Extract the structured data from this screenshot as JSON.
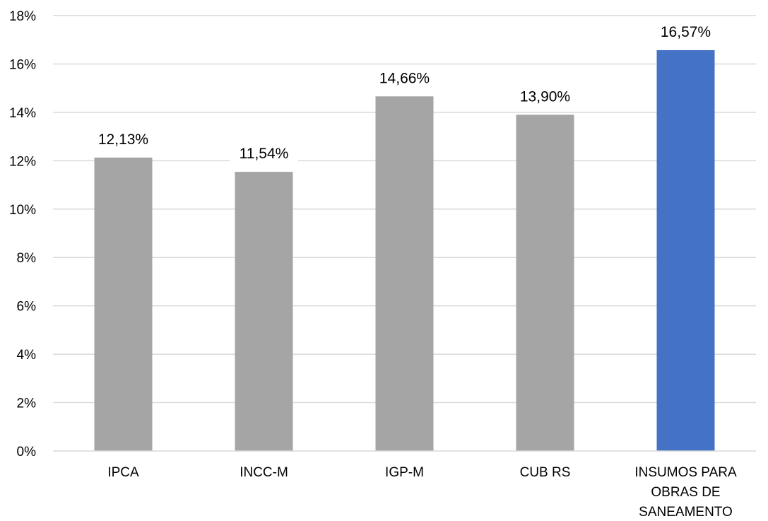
{
  "chart_data": {
    "type": "bar",
    "categories": [
      [
        "IPCA"
      ],
      [
        "INCC-M"
      ],
      [
        "IGP-M"
      ],
      [
        "CUB RS"
      ],
      [
        "INSUMOS PARA",
        "OBRAS DE",
        "SANEAMENTO"
      ]
    ],
    "values": [
      12.13,
      11.54,
      14.66,
      13.9,
      16.57
    ],
    "data_labels": [
      "12,13%",
      "11,54%",
      "14,66%",
      "13,90%",
      "16,57%"
    ],
    "bar_colors": [
      "#a5a5a5",
      "#a5a5a5",
      "#a5a5a5",
      "#a5a5a5",
      "#4472c4"
    ],
    "ylim": [
      0,
      18
    ],
    "ytick_values": [
      0,
      2,
      4,
      6,
      8,
      10,
      12,
      14,
      16,
      18
    ],
    "ytick_labels": [
      "0%",
      "2%",
      "4%",
      "6%",
      "8%",
      "10%",
      "12%",
      "14%",
      "16%",
      "18%"
    ],
    "grid": true,
    "legend": "none"
  }
}
